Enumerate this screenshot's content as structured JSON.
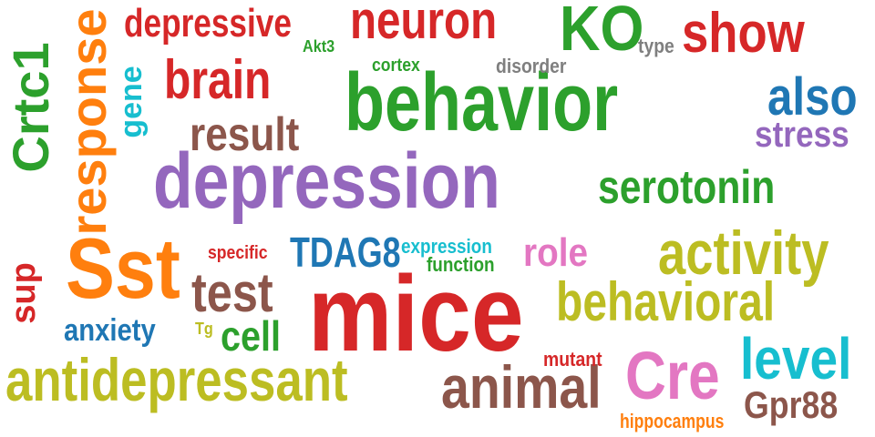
{
  "words": {
    "behavior": {
      "text": "behavior",
      "color": "#2ca02c"
    },
    "depression": {
      "text": "depression",
      "color": "#9467bd"
    },
    "mice": {
      "text": "mice",
      "color": "#d62728"
    },
    "sst": {
      "text": "Sst",
      "color": "#ff7f0e"
    },
    "antidepressant": {
      "text": "antidepressant",
      "color": "#bcbd22"
    },
    "activity": {
      "text": "activity",
      "color": "#bcbd22"
    },
    "behavioral": {
      "text": "behavioral",
      "color": "#bcbd22"
    },
    "animal": {
      "text": "animal",
      "color": "#8c564b"
    },
    "brain": {
      "text": "brain",
      "color": "#d62728"
    },
    "neuron": {
      "text": "neuron",
      "color": "#d62728"
    },
    "show": {
      "text": "show",
      "color": "#d62728"
    },
    "ko": {
      "text": "KO",
      "color": "#2ca02c"
    },
    "depressive": {
      "text": "depressive",
      "color": "#d62728"
    },
    "result": {
      "text": "result",
      "color": "#8c564b"
    },
    "serotonin": {
      "text": "serotonin",
      "color": "#2ca02c"
    },
    "also": {
      "text": "also",
      "color": "#1f77b4"
    },
    "stress": {
      "text": "stress",
      "color": "#9467bd"
    },
    "test": {
      "text": "test",
      "color": "#8c564b"
    },
    "cre": {
      "text": "Cre",
      "color": "#e377c2"
    },
    "level": {
      "text": "level",
      "color": "#17becf"
    },
    "gpr88": {
      "text": "Gpr88",
      "color": "#8c564b"
    },
    "crtc1": {
      "text": "Crtc1",
      "color": "#2ca02c"
    },
    "response": {
      "text": "response",
      "color": "#ff7f0e"
    },
    "gene": {
      "text": "gene",
      "color": "#17becf"
    },
    "sup": {
      "text": "sup",
      "color": "#d62728"
    },
    "tdag8": {
      "text": "TDAG8",
      "color": "#1f77b4"
    },
    "role": {
      "text": "role",
      "color": "#e377c2"
    },
    "cell": {
      "text": "cell",
      "color": "#2ca02c"
    },
    "anxiety": {
      "text": "anxiety",
      "color": "#1f77b4"
    },
    "akt3": {
      "text": "Akt3",
      "color": "#2ca02c"
    },
    "cortex": {
      "text": "cortex",
      "color": "#2ca02c"
    },
    "disorder": {
      "text": "disorder",
      "color": "#7f7f7f"
    },
    "type": {
      "text": "type",
      "color": "#7f7f7f"
    },
    "specific": {
      "text": "specific",
      "color": "#d62728"
    },
    "expression": {
      "text": "expression",
      "color": "#17becf"
    },
    "function": {
      "text": "function",
      "color": "#2ca02c"
    },
    "tg": {
      "text": "Tg",
      "color": "#bcbd22"
    },
    "mutant": {
      "text": "mutant",
      "color": "#d62728"
    },
    "hippocampus": {
      "text": "hippocampus",
      "color": "#ff7f0e"
    }
  }
}
